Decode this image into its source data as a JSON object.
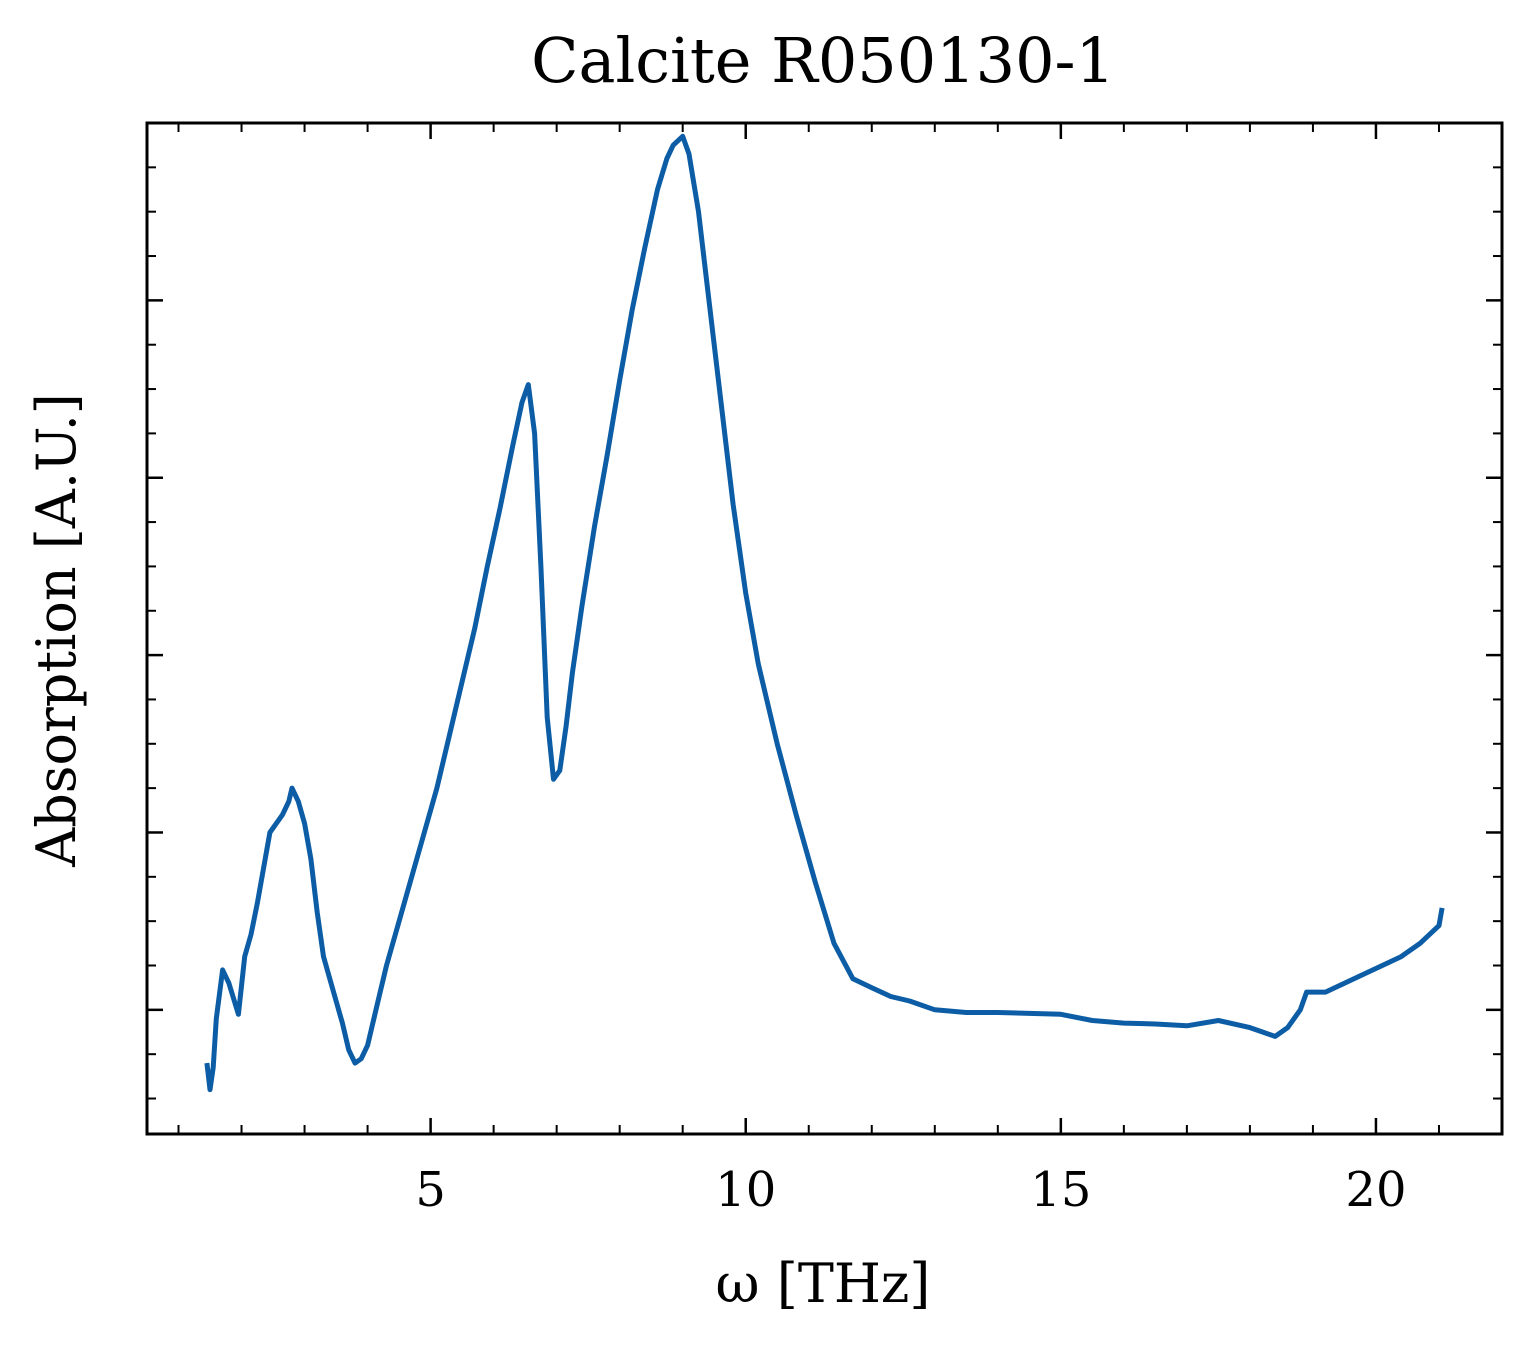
{
  "chart_data": {
    "type": "line",
    "title": "Calcite R050130-1",
    "xlabel": "ω [THz]",
    "ylabel": "Absorption [A.U.]",
    "xlim": [
      0.5,
      22.0
    ],
    "ylim": [
      -0.14,
      1.0
    ],
    "xticks": [
      5,
      10,
      15,
      20
    ],
    "xtick_labels": [
      "5",
      "10",
      "15",
      "20"
    ],
    "yticks": [
      0.0,
      0.2,
      0.4,
      0.6,
      0.8,
      1.0
    ],
    "ytick_labels_visible": false,
    "grid": false,
    "line_color": "#0C5DA5",
    "series": [
      {
        "x": [
          1.45,
          1.5,
          1.55,
          1.6,
          1.7,
          1.8,
          1.95,
          2.05,
          2.15,
          2.25,
          2.35,
          2.45,
          2.55,
          2.65,
          2.75,
          2.8,
          2.9,
          3.0,
          3.1,
          3.2,
          3.3,
          3.4,
          3.5,
          3.6,
          3.7,
          3.8,
          3.9,
          4.0,
          4.15,
          4.3,
          4.5,
          4.7,
          4.9,
          5.1,
          5.3,
          5.5,
          5.7,
          5.9,
          6.1,
          6.3,
          6.45,
          6.55,
          6.65,
          6.75,
          6.85,
          6.95,
          7.05,
          7.15,
          7.25,
          7.4,
          7.6,
          7.8,
          8.0,
          8.2,
          8.4,
          8.6,
          8.75,
          8.85,
          9.0,
          9.1,
          9.25,
          9.4,
          9.6,
          9.8,
          10.0,
          10.2,
          10.5,
          10.8,
          11.1,
          11.4,
          11.7,
          12.0,
          12.3,
          12.6,
          13.0,
          13.5,
          14.0,
          14.5,
          15.0,
          15.5,
          16.0,
          16.5,
          17.0,
          17.5,
          18.0,
          18.2,
          18.4,
          18.6,
          18.8,
          18.9,
          19.0,
          19.2,
          19.5,
          19.8,
          20.1,
          20.4,
          20.7,
          21.0,
          21.05
        ],
        "y": [
          -0.06,
          -0.09,
          -0.065,
          -0.01,
          0.045,
          0.03,
          -0.005,
          0.06,
          0.085,
          0.12,
          0.16,
          0.2,
          0.21,
          0.22,
          0.235,
          0.25,
          0.235,
          0.21,
          0.17,
          0.11,
          0.06,
          0.035,
          0.01,
          -0.015,
          -0.045,
          -0.06,
          -0.055,
          -0.04,
          0.005,
          0.05,
          0.1,
          0.15,
          0.2,
          0.25,
          0.31,
          0.37,
          0.43,
          0.5,
          0.565,
          0.635,
          0.685,
          0.705,
          0.65,
          0.5,
          0.33,
          0.26,
          0.27,
          0.32,
          0.38,
          0.455,
          0.545,
          0.625,
          0.71,
          0.79,
          0.86,
          0.925,
          0.96,
          0.975,
          0.985,
          0.965,
          0.9,
          0.81,
          0.69,
          0.57,
          0.47,
          0.39,
          0.3,
          0.22,
          0.145,
          0.075,
          0.035,
          0.025,
          0.015,
          0.01,
          0.0,
          -0.003,
          -0.003,
          -0.004,
          -0.005,
          -0.012,
          -0.015,
          -0.016,
          -0.018,
          -0.012,
          -0.02,
          -0.025,
          -0.03,
          -0.02,
          0.0,
          0.02,
          0.02,
          0.02,
          0.03,
          0.04,
          0.05,
          0.06,
          0.075,
          0.095,
          0.115
        ]
      }
    ]
  }
}
